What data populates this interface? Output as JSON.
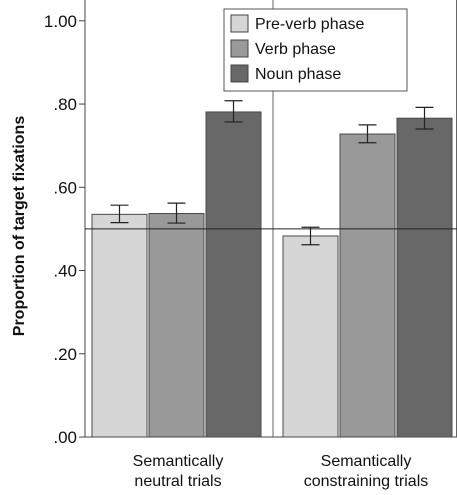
{
  "chart_data": {
    "type": "bar",
    "ylabel": "Proportion of target fixations",
    "ylim": [
      0,
      1.05
    ],
    "yticks": [
      {
        "value": 0.0,
        "label": ".00"
      },
      {
        "value": 0.2,
        "label": ".20"
      },
      {
        "value": 0.4,
        "label": ".40"
      },
      {
        "value": 0.6,
        "label": ".60"
      },
      {
        "value": 0.8,
        "label": ".80"
      },
      {
        "value": 1.0,
        "label": "1.00"
      }
    ],
    "reference_line": 0.5,
    "legend_position": "top-right",
    "panels": [
      {
        "label_lines": [
          "Semantically",
          "neutral trials"
        ]
      },
      {
        "label_lines": [
          "Semantically",
          "constraining trials"
        ]
      }
    ],
    "series": [
      {
        "name": "Pre-verb phase",
        "color": "#d6d6d6",
        "values": [
          0.535,
          0.483
        ],
        "error": [
          [
            0.515,
            0.557
          ],
          [
            0.462,
            0.504
          ]
        ]
      },
      {
        "name": "Verb phase",
        "color": "#999999",
        "values": [
          0.537,
          0.728
        ],
        "error": [
          [
            0.514,
            0.562
          ],
          [
            0.707,
            0.75
          ]
        ]
      },
      {
        "name": "Noun phase",
        "color": "#686868",
        "values": [
          0.781,
          0.766
        ],
        "error": [
          [
            0.757,
            0.808
          ],
          [
            0.74,
            0.792
          ]
        ]
      }
    ]
  }
}
